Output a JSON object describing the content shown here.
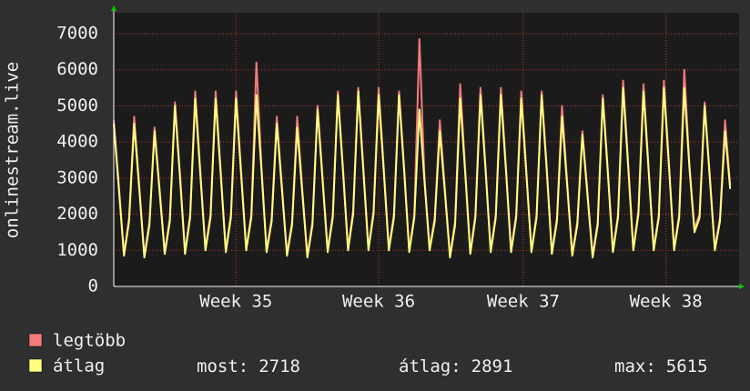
{
  "chart_data": {
    "type": "line",
    "ylabel": "onlinestream.live",
    "x": [
      0,
      0.25,
      0.5,
      0.75,
      1,
      1.25,
      1.5,
      1.75,
      2,
      2.25,
      2.5,
      2.75,
      3,
      3.25,
      3.5,
      3.75,
      4,
      4.25,
      4.5,
      4.75,
      5,
      5.25,
      5.5,
      5.75,
      6,
      6.25,
      6.5,
      6.75,
      7,
      7.25,
      7.5,
      7.75,
      8,
      8.25,
      8.5,
      8.75,
      9,
      9.25,
      9.5,
      9.75,
      10,
      10.25,
      10.5,
      10.75,
      11,
      11.25,
      11.5,
      11.75,
      12,
      12.25,
      12.5,
      12.75,
      13,
      13.25,
      13.5,
      13.75,
      14,
      14.25,
      14.5,
      14.75,
      15,
      15.25,
      15.5,
      15.75,
      16,
      16.25,
      16.5,
      16.75,
      17,
      17.25,
      17.5,
      17.75,
      18,
      18.25,
      18.5,
      18.75,
      19,
      19.25,
      19.5,
      19.75,
      20,
      20.25,
      20.5,
      20.75,
      21,
      21.25,
      21.5,
      21.75,
      22,
      22.25,
      22.5,
      22.75,
      23,
      23.25,
      23.5,
      23.75,
      24,
      24.25,
      24.5,
      24.75,
      25,
      25.25,
      25.5,
      25.75,
      26,
      26.25,
      26.5,
      26.75,
      27,
      27.25,
      27.5,
      27.75,
      28,
      28.25,
      28.5,
      28.75,
      29,
      29.25,
      29.5,
      29.75,
      30,
      30.25
    ],
    "series": [
      {
        "name": "legtöbb",
        "color": "#f47c7c",
        "values": [
          4600,
          2800,
          900,
          1900,
          4700,
          2800,
          850,
          1800,
          4400,
          2700,
          950,
          1900,
          5100,
          3100,
          950,
          2000,
          5400,
          3200,
          1050,
          2000,
          5400,
          3200,
          1000,
          2000,
          5400,
          3200,
          1050,
          2000,
          6200,
          3300,
          1000,
          1900,
          4700,
          2800,
          900,
          1800,
          4700,
          2700,
          850,
          1800,
          5000,
          3000,
          1000,
          2000,
          5400,
          3300,
          1050,
          2100,
          5500,
          3300,
          1050,
          2100,
          5500,
          3300,
          1050,
          2000,
          5400,
          3300,
          1000,
          2000,
          6850,
          3000,
          1050,
          1900,
          4600,
          2700,
          850,
          1800,
          5600,
          3200,
          950,
          2000,
          5500,
          3300,
          1000,
          2000,
          5500,
          3300,
          1000,
          2000,
          5400,
          3200,
          1000,
          2000,
          5400,
          3300,
          950,
          1900,
          5000,
          2900,
          900,
          1800,
          4300,
          2600,
          850,
          1800,
          5300,
          3200,
          1000,
          2000,
          5700,
          3400,
          1050,
          2100,
          5600,
          3300,
          1050,
          2000,
          5700,
          3400,
          1050,
          2000,
          6000,
          3400,
          1600,
          2000,
          5100,
          3100,
          1050,
          1900,
          4600,
          2800
        ]
      },
      {
        "name": "átlag",
        "color": "#ffff80",
        "values": [
          4500,
          2700,
          850,
          1800,
          4500,
          2700,
          800,
          1700,
          4300,
          2600,
          900,
          1800,
          5000,
          3000,
          900,
          1900,
          5200,
          3100,
          1000,
          1900,
          5200,
          3100,
          950,
          1900,
          5200,
          3100,
          1000,
          1900,
          5300,
          3200,
          950,
          1800,
          4500,
          2700,
          850,
          1700,
          4400,
          2600,
          800,
          1700,
          4900,
          2900,
          950,
          1900,
          5300,
          3200,
          1000,
          2000,
          5400,
          3200,
          1000,
          2000,
          5300,
          3200,
          1000,
          1900,
          5300,
          3200,
          950,
          1900,
          4900,
          2900,
          1000,
          1800,
          4300,
          2600,
          800,
          1700,
          5200,
          3100,
          900,
          1900,
          5300,
          3200,
          950,
          1900,
          5300,
          3200,
          950,
          1900,
          5200,
          3100,
          950,
          1900,
          5300,
          3200,
          900,
          1800,
          4700,
          2800,
          850,
          1700,
          4200,
          2500,
          800,
          1700,
          5200,
          3100,
          950,
          1900,
          5500,
          3300,
          1000,
          2000,
          5400,
          3200,
          1000,
          1900,
          5500,
          3300,
          1000,
          1900,
          5500,
          3300,
          1500,
          1900,
          5000,
          3000,
          1000,
          1800,
          4300,
          2700
        ]
      }
    ],
    "xlim": [
      0,
      30.6
    ],
    "xticks": [
      {
        "value": 6.0,
        "label": "Week 35"
      },
      {
        "value": 13.0,
        "label": "Week 36"
      },
      {
        "value": 20.1,
        "label": "Week 37"
      },
      {
        "value": 27.1,
        "label": "Week 38"
      }
    ],
    "ylim": [
      0,
      7000
    ],
    "yticks": [
      0,
      1000,
      2000,
      3000,
      4000,
      5000,
      6000,
      7000
    ],
    "grid": true,
    "stats": [
      {
        "label": "most:",
        "value": 2718
      },
      {
        "label": "átlag:",
        "value": 2891
      },
      {
        "label": "max:",
        "value": 5615
      }
    ]
  }
}
